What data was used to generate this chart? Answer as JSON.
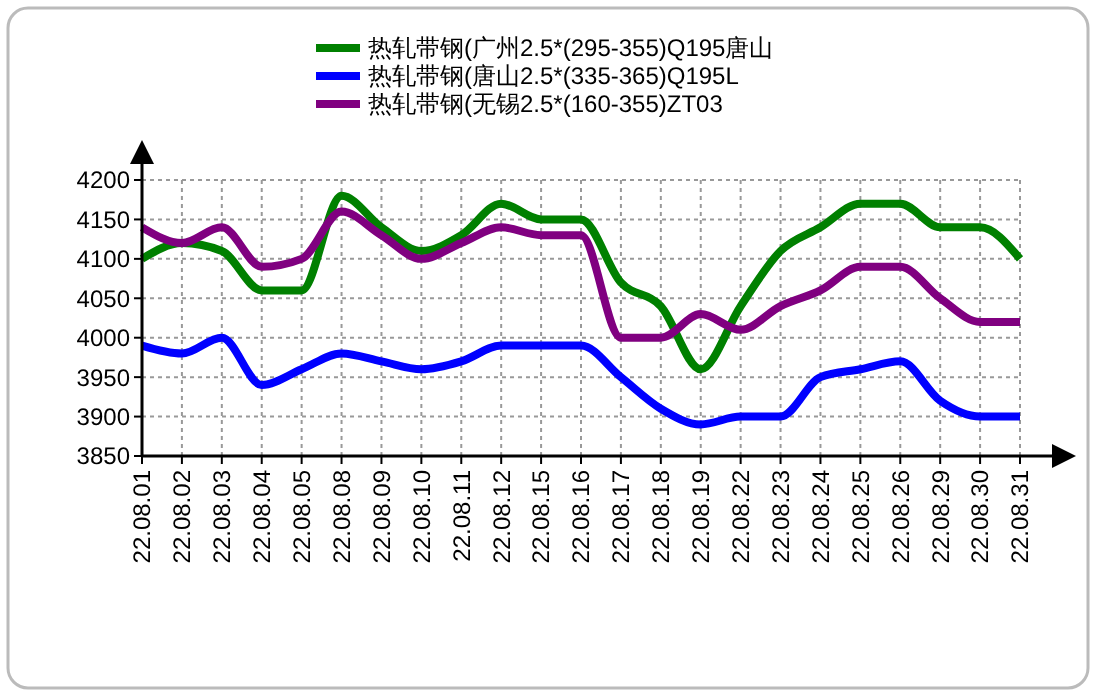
{
  "chart_data": {
    "type": "line",
    "categories": [
      "22.08.01",
      "22.08.02",
      "22.08.03",
      "22.08.04",
      "22.08.05",
      "22.08.08",
      "22.08.09",
      "22.08.10",
      "22.08.11",
      "22.08.12",
      "22.08.15",
      "22.08.16",
      "22.08.17",
      "22.08.18",
      "22.08.19",
      "22.08.22",
      "22.08.23",
      "22.08.24",
      "22.08.25",
      "22.08.26",
      "22.08.29",
      "22.08.30",
      "22.08.31"
    ],
    "series": [
      {
        "name": "热轧带钢(广州2.5*(295-355)Q195唐山",
        "color": "#008000",
        "values": [
          4100,
          4120,
          4110,
          4060,
          4060,
          4180,
          4140,
          4110,
          4130,
          4170,
          4150,
          4150,
          4070,
          4040,
          3960,
          4040,
          4110,
          4140,
          4170,
          4170,
          4140,
          4140,
          4100
        ]
      },
      {
        "name": "热轧带钢(唐山2.5*(335-365)Q195L",
        "color": "#0000ff",
        "values": [
          3990,
          3980,
          4000,
          3940,
          3960,
          3980,
          3970,
          3960,
          3970,
          3990,
          3990,
          3990,
          3950,
          3910,
          3890,
          3900,
          3900,
          3950,
          3960,
          3970,
          3920,
          3900,
          3900
        ]
      },
      {
        "name": "热轧带钢(无锡2.5*(160-355)ZT03",
        "color": "#800080",
        "values": [
          4140,
          4120,
          4140,
          4090,
          4100,
          4160,
          4130,
          4100,
          4120,
          4140,
          4130,
          4130,
          4000,
          4000,
          4030,
          4010,
          4040,
          4060,
          4090,
          4090,
          4050,
          4020,
          4020
        ]
      }
    ],
    "ylim": [
      3850,
      4200
    ],
    "yticks": [
      3850,
      3900,
      3950,
      4000,
      4050,
      4100,
      4150,
      4200
    ],
    "grid": true,
    "legend": "top",
    "marker": "none",
    "line_style": "solid"
  }
}
